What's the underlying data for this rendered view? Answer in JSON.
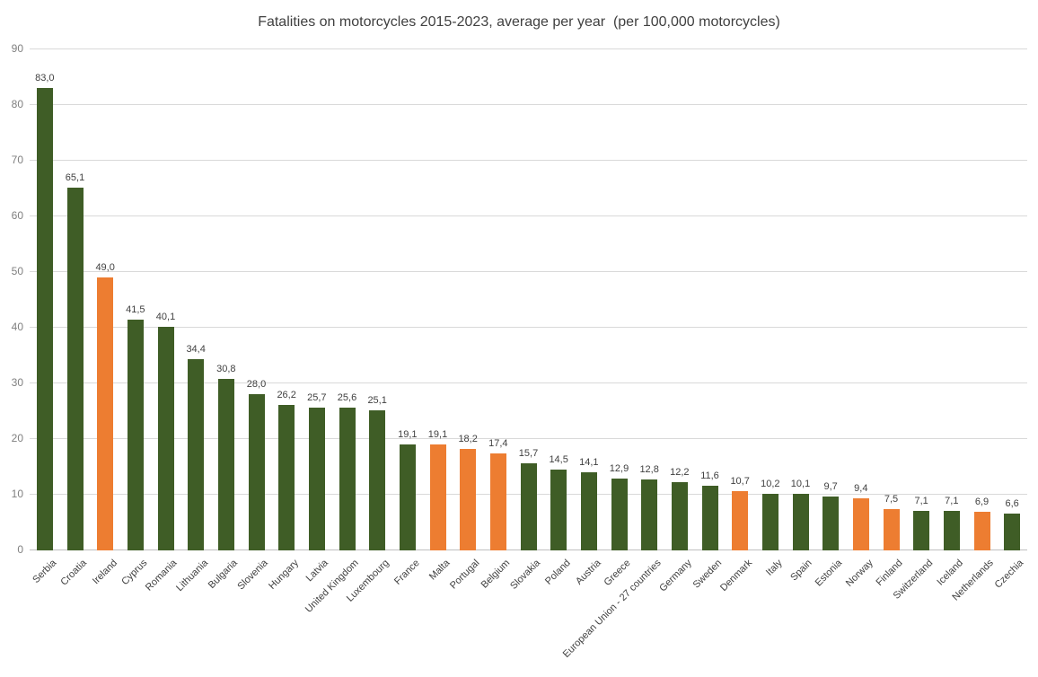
{
  "chart_data": {
    "type": "bar",
    "title": "Fatalities on motorcycles 2015-2023, average per year  (per 100,000 motorcycles)",
    "xlabel": "",
    "ylabel": "",
    "grid": "horizontal",
    "legend": "none",
    "y_axis": {
      "min": 0,
      "max": 90,
      "step": 10,
      "tick_labels": [
        "0",
        "10",
        "20",
        "30",
        "40",
        "50",
        "60",
        "70",
        "80",
        "90"
      ]
    },
    "categories": [
      "Serbia",
      "Croatia",
      "Ireland",
      "Cyprus",
      "Romania",
      "Lithuania",
      "Bulgaria",
      "Slovenia",
      "Hungary",
      "Latvia",
      "United Kingdom",
      "Luxembourg",
      "France",
      "Malta",
      "Portugal",
      "Belgium",
      "Slovakia",
      "Poland",
      "Austria",
      "Greece",
      "European Union - 27 countries",
      "Germany",
      "Sweden",
      "Denmark",
      "Italy",
      "Spain",
      "Estonia",
      "Norway",
      "Finland",
      "Switzerland",
      "Iceland",
      "Netherlands",
      "Czechia"
    ],
    "values": [
      83.0,
      65.1,
      49.0,
      41.5,
      40.1,
      34.4,
      30.8,
      28.0,
      26.2,
      25.7,
      25.6,
      25.1,
      19.1,
      19.1,
      18.2,
      17.4,
      15.7,
      14.5,
      14.1,
      12.9,
      12.8,
      12.2,
      11.6,
      10.7,
      10.2,
      10.1,
      9.7,
      9.4,
      7.5,
      7.1,
      7.1,
      6.9,
      6.6
    ],
    "value_labels": [
      "83,0",
      "65,1",
      "49,0",
      "41,5",
      "40,1",
      "34,4",
      "30,8",
      "28,0",
      "26,2",
      "25,7",
      "25,6",
      "25,1",
      "19,1",
      "19,1",
      "18,2",
      "17,4",
      "15,7",
      "14,5",
      "14,1",
      "12,9",
      "12,8",
      "12,2",
      "11,6",
      "10,7",
      "10,2",
      "10,1",
      "9,7",
      "9,4",
      "7,5",
      "7,1",
      "7,1",
      "6,9",
      "6,6"
    ],
    "bar_color_keys": [
      "green",
      "green",
      "orange",
      "green",
      "green",
      "green",
      "green",
      "green",
      "green",
      "green",
      "green",
      "green",
      "green",
      "orange",
      "orange",
      "orange",
      "green",
      "green",
      "green",
      "green",
      "green",
      "green",
      "green",
      "orange",
      "green",
      "green",
      "green",
      "orange",
      "orange",
      "green",
      "green",
      "orange",
      "green"
    ],
    "colors": {
      "green": "#3f5d26",
      "orange": "#ed7d31",
      "gridline": "#d9d9d9",
      "axis_line": "#bfbfbf",
      "y_tick_label": "#808080",
      "value_label": "#404040",
      "category_label": "#404040",
      "title": "#404040",
      "background": "#ffffff"
    }
  }
}
